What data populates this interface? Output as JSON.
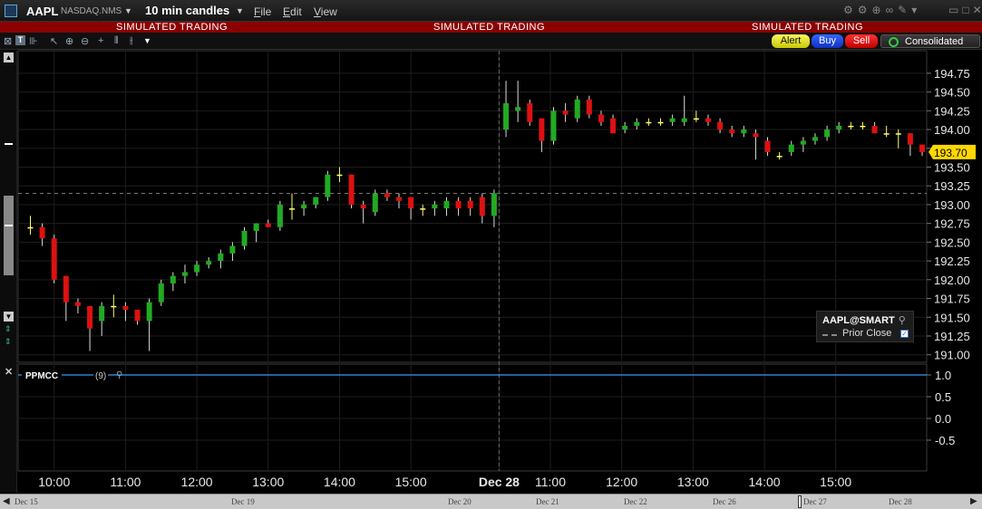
{
  "window": {
    "symbol": "AAPL",
    "exchange": "NASDAQ.NMS",
    "period": "10 min candles",
    "menus": [
      "File",
      "Edit",
      "View"
    ]
  },
  "simulated_text": "SIMULATED TRADING",
  "actions": {
    "alert": "Alert",
    "buy": "Buy",
    "sell": "Sell",
    "consolidated": "Consolidated"
  },
  "legend": {
    "instrument": "AAPL@SMART",
    "prior_close": "Prior Close"
  },
  "indicator": {
    "name": "PPMCC",
    "param": "(9)"
  },
  "nav": {
    "dates": [
      "Dec 15",
      "Dec 19",
      "Dec 20",
      "Dec 21",
      "Dec 22",
      "Dec 26",
      "Dec 27",
      "Dec 28"
    ]
  },
  "colors": {
    "up": "#22aa22",
    "down": "#dd1111",
    "doji": "#ffff66",
    "last_price_tag": "#ffd700",
    "indicator_line": "#3399ff",
    "sim_bar": "#8b0000"
  },
  "chart_data": {
    "type": "candlestick",
    "price_ticks": [
      "194.75",
      "194.50",
      "194.25",
      "194.00",
      "193.75",
      "193.50",
      "193.25",
      "193.00",
      "192.75",
      "192.50",
      "192.25",
      "192.00",
      "191.75",
      "191.50",
      "191.25",
      "191.00"
    ],
    "ylim": [
      190.9,
      195.05
    ],
    "indicator_ticks": [
      "1.0",
      "0.5",
      "0.0",
      "-0.5"
    ],
    "indicator_ylim": [
      -1.0,
      1.0
    ],
    "time_labels": [
      "10:00",
      "11:00",
      "12:00",
      "13:00",
      "14:00",
      "15:00",
      "Dec 28",
      "11:00",
      "12:00",
      "13:00",
      "14:00",
      "15:00"
    ],
    "prior_close": 193.15,
    "last_price": "193.70",
    "indicator_value": 1.0,
    "candles": [
      {
        "o": 192.7,
        "h": 192.85,
        "l": 192.6,
        "c": 192.7
      },
      {
        "o": 192.7,
        "h": 192.75,
        "l": 192.45,
        "c": 192.55
      },
      {
        "o": 192.55,
        "h": 192.6,
        "l": 191.95,
        "c": 192.0
      },
      {
        "o": 192.05,
        "h": 192.05,
        "l": 191.45,
        "c": 191.7
      },
      {
        "o": 191.7,
        "h": 191.75,
        "l": 191.55,
        "c": 191.65
      },
      {
        "o": 191.65,
        "h": 191.65,
        "l": 191.05,
        "c": 191.35
      },
      {
        "o": 191.45,
        "h": 191.7,
        "l": 191.25,
        "c": 191.65
      },
      {
        "o": 191.65,
        "h": 191.8,
        "l": 191.5,
        "c": 191.65
      },
      {
        "o": 191.65,
        "h": 191.7,
        "l": 191.45,
        "c": 191.6
      },
      {
        "o": 191.6,
        "h": 191.6,
        "l": 191.4,
        "c": 191.45
      },
      {
        "o": 191.45,
        "h": 191.75,
        "l": 191.05,
        "c": 191.7
      },
      {
        "o": 191.7,
        "h": 192.0,
        "l": 191.65,
        "c": 191.95
      },
      {
        "o": 191.95,
        "h": 192.1,
        "l": 191.85,
        "c": 192.05
      },
      {
        "o": 192.05,
        "h": 192.2,
        "l": 191.95,
        "c": 192.1
      },
      {
        "o": 192.1,
        "h": 192.25,
        "l": 192.05,
        "c": 192.2
      },
      {
        "o": 192.2,
        "h": 192.3,
        "l": 192.15,
        "c": 192.25
      },
      {
        "o": 192.25,
        "h": 192.4,
        "l": 192.15,
        "c": 192.35
      },
      {
        "o": 192.35,
        "h": 192.5,
        "l": 192.25,
        "c": 192.45
      },
      {
        "o": 192.45,
        "h": 192.7,
        "l": 192.4,
        "c": 192.65
      },
      {
        "o": 192.65,
        "h": 192.75,
        "l": 192.5,
        "c": 192.75
      },
      {
        "o": 192.75,
        "h": 192.8,
        "l": 192.7,
        "c": 192.7
      },
      {
        "o": 192.7,
        "h": 193.05,
        "l": 192.65,
        "c": 193.0
      },
      {
        "o": 192.95,
        "h": 193.15,
        "l": 192.8,
        "c": 192.95
      },
      {
        "o": 192.95,
        "h": 193.05,
        "l": 192.85,
        "c": 193.0
      },
      {
        "o": 193.0,
        "h": 193.1,
        "l": 192.95,
        "c": 193.1
      },
      {
        "o": 193.1,
        "h": 193.45,
        "l": 193.05,
        "c": 193.4
      },
      {
        "o": 193.4,
        "h": 193.5,
        "l": 193.3,
        "c": 193.4
      },
      {
        "o": 193.4,
        "h": 193.4,
        "l": 192.95,
        "c": 193.0
      },
      {
        "o": 193.0,
        "h": 193.05,
        "l": 192.75,
        "c": 192.95
      },
      {
        "o": 192.9,
        "h": 193.2,
        "l": 192.85,
        "c": 193.15
      },
      {
        "o": 193.15,
        "h": 193.2,
        "l": 193.05,
        "c": 193.1
      },
      {
        "o": 193.1,
        "h": 193.15,
        "l": 192.95,
        "c": 193.05
      },
      {
        "o": 193.1,
        "h": 193.1,
        "l": 192.8,
        "c": 192.95
      },
      {
        "o": 192.95,
        "h": 193.0,
        "l": 192.85,
        "c": 192.95
      },
      {
        "o": 192.95,
        "h": 193.05,
        "l": 192.85,
        "c": 193.0
      },
      {
        "o": 192.95,
        "h": 193.1,
        "l": 192.85,
        "c": 193.05
      },
      {
        "o": 193.05,
        "h": 193.1,
        "l": 192.85,
        "c": 192.95
      },
      {
        "o": 193.05,
        "h": 193.1,
        "l": 192.85,
        "c": 192.95
      },
      {
        "o": 193.1,
        "h": 193.15,
        "l": 192.75,
        "c": 192.85
      },
      {
        "o": 192.85,
        "h": 193.2,
        "l": 192.7,
        "c": 193.15
      },
      {
        "o": 194.0,
        "h": 194.65,
        "l": 193.9,
        "c": 194.35
      },
      {
        "o": 194.25,
        "h": 194.65,
        "l": 194.1,
        "c": 194.3
      },
      {
        "o": 194.35,
        "h": 194.4,
        "l": 194.05,
        "c": 194.1
      },
      {
        "o": 194.15,
        "h": 194.15,
        "l": 193.7,
        "c": 193.85
      },
      {
        "o": 193.85,
        "h": 194.3,
        "l": 193.8,
        "c": 194.25
      },
      {
        "o": 194.25,
        "h": 194.35,
        "l": 194.1,
        "c": 194.2
      },
      {
        "o": 194.15,
        "h": 194.45,
        "l": 194.1,
        "c": 194.4
      },
      {
        "o": 194.4,
        "h": 194.45,
        "l": 194.15,
        "c": 194.2
      },
      {
        "o": 194.2,
        "h": 194.25,
        "l": 194.05,
        "c": 194.1
      },
      {
        "o": 194.15,
        "h": 194.2,
        "l": 193.95,
        "c": 193.95
      },
      {
        "o": 194.0,
        "h": 194.1,
        "l": 193.95,
        "c": 194.05
      },
      {
        "o": 194.05,
        "h": 194.15,
        "l": 194.0,
        "c": 194.1
      },
      {
        "o": 194.1,
        "h": 194.15,
        "l": 194.05,
        "c": 194.1
      },
      {
        "o": 194.1,
        "h": 194.15,
        "l": 194.05,
        "c": 194.1
      },
      {
        "o": 194.1,
        "h": 194.2,
        "l": 194.05,
        "c": 194.15
      },
      {
        "o": 194.1,
        "h": 194.45,
        "l": 194.05,
        "c": 194.15
      },
      {
        "o": 194.15,
        "h": 194.25,
        "l": 194.1,
        "c": 194.15
      },
      {
        "o": 194.15,
        "h": 194.2,
        "l": 194.05,
        "c": 194.1
      },
      {
        "o": 194.1,
        "h": 194.15,
        "l": 193.95,
        "c": 194.0
      },
      {
        "o": 194.0,
        "h": 194.05,
        "l": 193.9,
        "c": 193.95
      },
      {
        "o": 193.95,
        "h": 194.05,
        "l": 193.9,
        "c": 194.0
      },
      {
        "o": 193.95,
        "h": 194.0,
        "l": 193.6,
        "c": 193.9
      },
      {
        "o": 193.85,
        "h": 193.9,
        "l": 193.65,
        "c": 193.7
      },
      {
        "o": 193.65,
        "h": 193.7,
        "l": 193.6,
        "c": 193.65
      },
      {
        "o": 193.7,
        "h": 193.85,
        "l": 193.65,
        "c": 193.8
      },
      {
        "o": 193.8,
        "h": 193.9,
        "l": 193.7,
        "c": 193.85
      },
      {
        "o": 193.85,
        "h": 193.95,
        "l": 193.8,
        "c": 193.9
      },
      {
        "o": 193.9,
        "h": 194.05,
        "l": 193.85,
        "c": 194.0
      },
      {
        "o": 194.0,
        "h": 194.1,
        "l": 193.95,
        "c": 194.05
      },
      {
        "o": 194.05,
        "h": 194.1,
        "l": 194.0,
        "c": 194.05
      },
      {
        "o": 194.05,
        "h": 194.1,
        "l": 194.0,
        "c": 194.05
      },
      {
        "o": 194.05,
        "h": 194.1,
        "l": 193.95,
        "c": 193.95
      },
      {
        "o": 193.95,
        "h": 194.05,
        "l": 193.9,
        "c": 193.95
      },
      {
        "o": 193.95,
        "h": 194.0,
        "l": 193.75,
        "c": 193.95
      },
      {
        "o": 193.95,
        "h": 193.95,
        "l": 193.65,
        "c": 193.8
      },
      {
        "o": 193.8,
        "h": 193.8,
        "l": 193.65,
        "c": 193.7
      }
    ]
  }
}
